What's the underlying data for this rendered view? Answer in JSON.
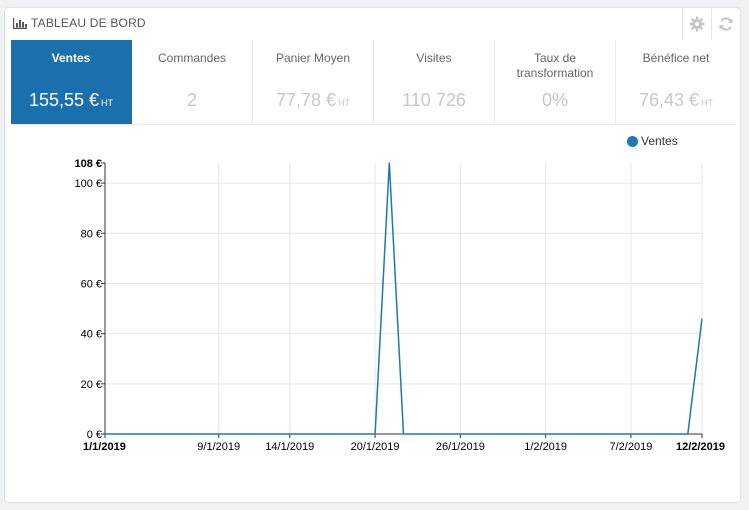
{
  "header": {
    "title": "TABLEAU DE BORD",
    "icon": "bar-chart-icon",
    "actions": [
      "gear-icon",
      "refresh-icon"
    ]
  },
  "kpis": [
    {
      "label": "Ventes",
      "value": "155,55 €",
      "suffix": "HT",
      "active": true
    },
    {
      "label": "Commandes",
      "value": "2",
      "suffix": "",
      "active": false
    },
    {
      "label": "Panier Moyen",
      "value": "77,78 €",
      "suffix": "HT",
      "active": false
    },
    {
      "label": "Visites",
      "value": "110 726",
      "suffix": "",
      "active": false
    },
    {
      "label": "Taux de transformation",
      "value": "0%",
      "suffix": "",
      "active": false
    },
    {
      "label": "Bénéfice net",
      "value": "76,43 €",
      "suffix": "HT",
      "active": false
    }
  ],
  "colors": {
    "active_tile": "#1c6fad",
    "series": "#1f77b4"
  },
  "chart_data": {
    "type": "line",
    "legend": "Ventes",
    "legend_position": "top-right",
    "grid": true,
    "ylim": [
      0,
      108
    ],
    "y_ticks": [
      {
        "value": 0,
        "label": "0 €"
      },
      {
        "value": 20,
        "label": "20 €"
      },
      {
        "value": 40,
        "label": "40 €"
      },
      {
        "value": 60,
        "label": "60 €"
      },
      {
        "value": 80,
        "label": "80 €"
      },
      {
        "value": 100,
        "label": "100 €"
      },
      {
        "value": 108,
        "label": "108 €"
      }
    ],
    "xlim": [
      "2019-01-01",
      "2019-02-12"
    ],
    "x_ticks": [
      {
        "date": "2019-01-01",
        "label": "1/1/2019",
        "bold": true
      },
      {
        "date": "2019-01-09",
        "label": "9/1/2019",
        "bold": false
      },
      {
        "date": "2019-01-14",
        "label": "14/1/2019",
        "bold": false
      },
      {
        "date": "2019-01-20",
        "label": "20/1/2019",
        "bold": false
      },
      {
        "date": "2019-01-26",
        "label": "26/1/2019",
        "bold": false
      },
      {
        "date": "2019-02-01",
        "label": "1/2/2019",
        "bold": false
      },
      {
        "date": "2019-02-07",
        "label": "7/2/2019",
        "bold": false
      },
      {
        "date": "2019-02-12",
        "label": "12/2/2019",
        "bold": true
      }
    ],
    "series": [
      {
        "name": "Ventes",
        "points": [
          {
            "x": "2019-01-01",
            "y": 0
          },
          {
            "x": "2019-01-20",
            "y": 0
          },
          {
            "x": "2019-01-21",
            "y": 108
          },
          {
            "x": "2019-01-22",
            "y": 0
          },
          {
            "x": "2019-02-11",
            "y": 0
          },
          {
            "x": "2019-02-12",
            "y": 46
          }
        ]
      }
    ]
  }
}
